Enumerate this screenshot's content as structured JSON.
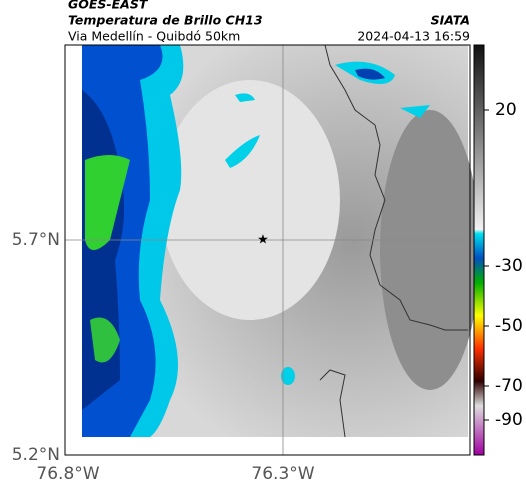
{
  "header": {
    "satellite": "GOES-EAST",
    "product": "Temperatura de Brillo CH13",
    "location": "Via Medellín - Quibdó 50km",
    "source": "SIATA",
    "datetime": "2024-04-13 16:59"
  },
  "axes": {
    "latitude_labels": [
      "5.7°N",
      "5.2°N"
    ],
    "longitude_labels": [
      "76.8°W",
      "76.3°W"
    ]
  },
  "colorbar": {
    "labels": [
      "20",
      "-30",
      "-50",
      "-70",
      "-90"
    ]
  }
}
